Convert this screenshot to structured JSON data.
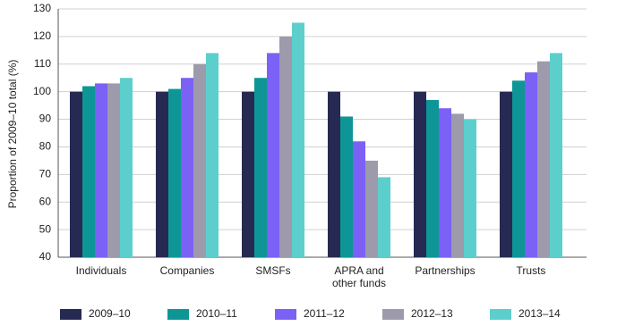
{
  "chart_data": {
    "type": "bar",
    "y_label": "Proportion of 2009–10 total (%)",
    "categories": [
      "Individuals",
      "Companies",
      "SMSFs",
      "APRA and other funds",
      "Partnerships",
      "Trusts"
    ],
    "series": [
      {
        "name": "2009–10",
        "color": "#262a52",
        "values": [
          100,
          100,
          100,
          100,
          100,
          100
        ]
      },
      {
        "name": "2010–11",
        "color": "#0e9696",
        "values": [
          102,
          101,
          105,
          91,
          97,
          104
        ]
      },
      {
        "name": "2011–12",
        "color": "#7b61f5",
        "values": [
          103,
          105,
          114,
          82,
          94,
          107
        ]
      },
      {
        "name": "2012–13",
        "color": "#9d9aab",
        "values": [
          103,
          110,
          120,
          75,
          92,
          111
        ]
      },
      {
        "name": "2013–14",
        "color": "#5ccfcc",
        "values": [
          105,
          114,
          125,
          69,
          90,
          114
        ]
      }
    ],
    "ylim": [
      40,
      130
    ],
    "yticks": [
      40,
      50,
      60,
      70,
      80,
      90,
      100,
      110,
      120,
      130
    ],
    "grid": true
  }
}
